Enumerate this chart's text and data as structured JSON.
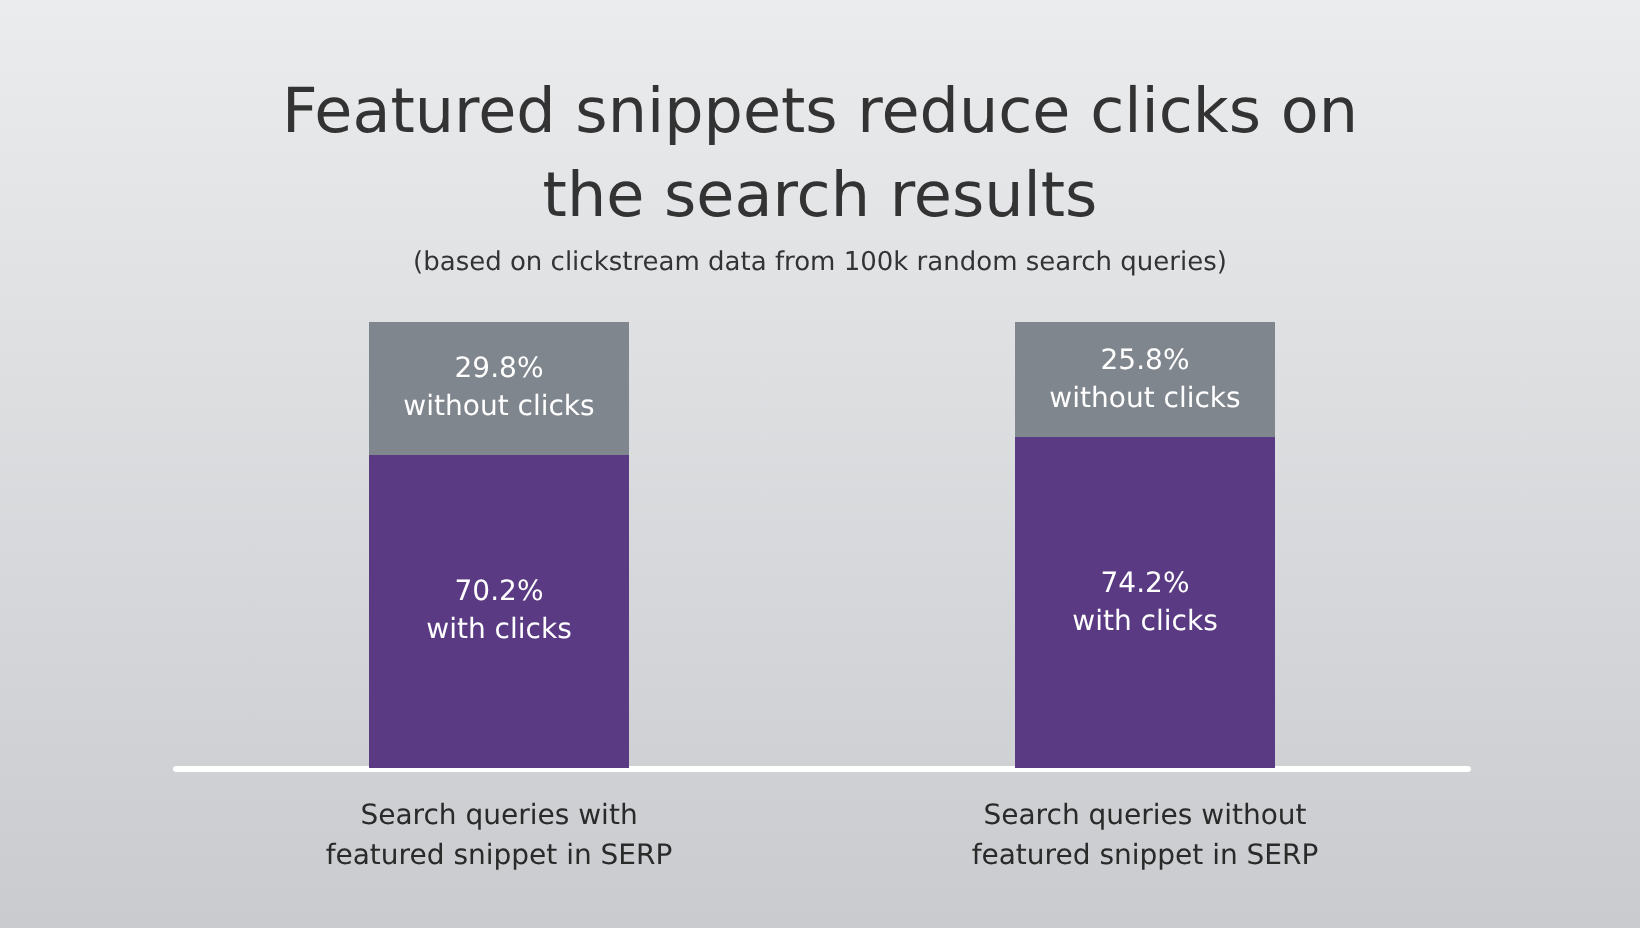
{
  "chart_data": {
    "type": "bar",
    "title": "Featured snippets reduce clicks on\nthe search results",
    "subtitle": "(based on clickstream data from 100k random search queries)",
    "categories": [
      "Search queries with\nfeatured snippet in SERP",
      "Search queries without\nfeatured snippet in SERP"
    ],
    "stacked": true,
    "legend": false,
    "series": [
      {
        "name": "with clicks",
        "color": "#5b3a84",
        "values": [
          70.2,
          74.2
        ],
        "value_labels": [
          "70.2%",
          "74.2%"
        ]
      },
      {
        "name": "without clicks",
        "color": "#80868d",
        "values": [
          29.8,
          25.8
        ],
        "value_labels": [
          "29.8%",
          "25.8%"
        ]
      }
    ]
  }
}
